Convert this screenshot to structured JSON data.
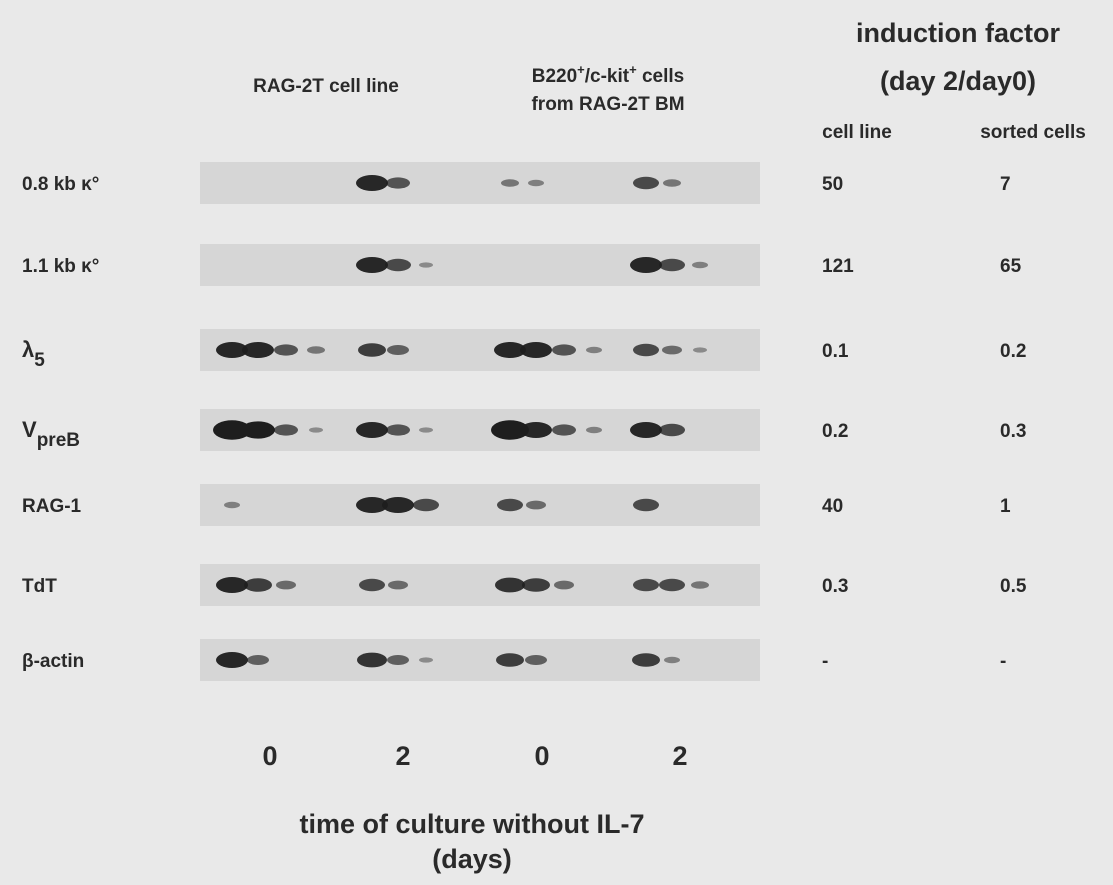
{
  "header": {
    "cell_line": "RAG-2T cell line",
    "sorted_parts": [
      "B220",
      "+",
      "/c-kit",
      "+",
      " cells"
    ],
    "sorted_line2": "from RAG-2T BM"
  },
  "induction": {
    "title": "induction factor",
    "subtitle": "(day 2/day0)",
    "columns": [
      "cell line",
      "sorted cells"
    ]
  },
  "rows": [
    {
      "label": "0.8 kb κ°",
      "cell_line": 50,
      "sorted": 7
    },
    {
      "label": "1.1 kb κ°",
      "cell_line": 121,
      "sorted": 65
    },
    {
      "label": "λ",
      "label_sub": "5",
      "cell_line": 0.1,
      "sorted": 0.2
    },
    {
      "label": "V",
      "label_sub": "preB",
      "cell_line": 0.2,
      "sorted": 0.3
    },
    {
      "label": "RAG-1",
      "cell_line": 40,
      "sorted": 1
    },
    {
      "label": "TdT",
      "cell_line": 0.3,
      "sorted": 0.5
    },
    {
      "label": "β-actin",
      "cell_line": "-",
      "sorted": "-"
    }
  ],
  "x_axis": {
    "ticks": [
      "0",
      "2",
      "0",
      "2"
    ],
    "title": "time of culture without IL-7",
    "title_line2": "(days)"
  }
}
